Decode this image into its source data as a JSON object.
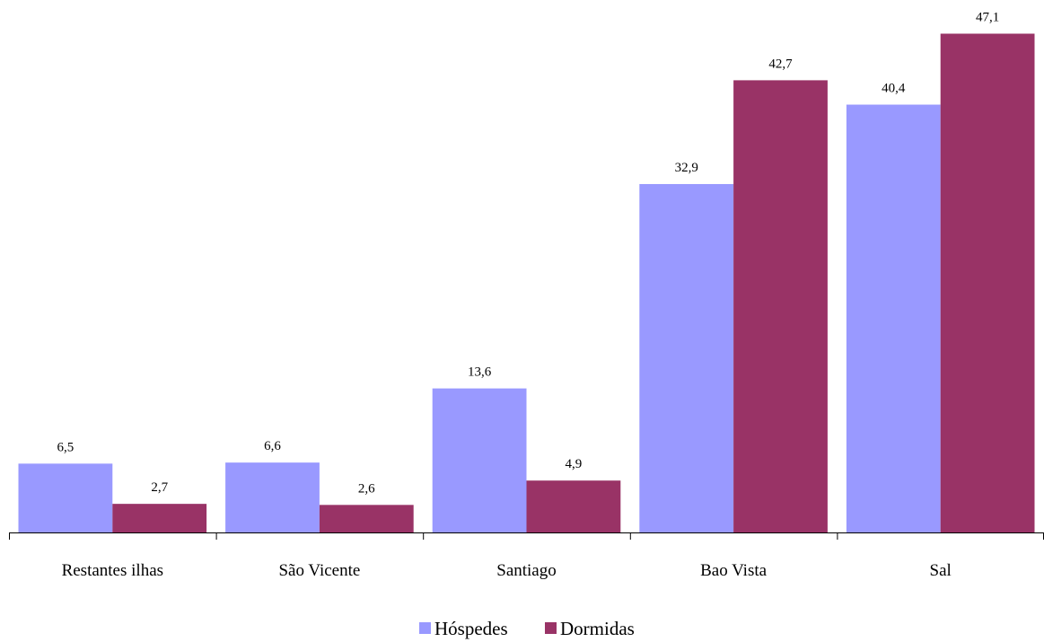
{
  "chart_data": {
    "type": "bar",
    "categories": [
      "Restantes ilhas",
      "São Vicente",
      "Santiago",
      "Bao Vista",
      "Sal"
    ],
    "series": [
      {
        "name": "Hóspedes",
        "values": [
          6.5,
          6.6,
          13.6,
          32.9,
          40.4
        ],
        "color": "#9999ff"
      },
      {
        "name": "Dormidas",
        "values": [
          2.7,
          2.6,
          4.9,
          42.7,
          47.1
        ],
        "color": "#993366"
      }
    ],
    "data_labels": [
      [
        "6,5",
        "6,6",
        "13,6",
        "32,9",
        "40,4"
      ],
      [
        "2,7",
        "2,6",
        "4,9",
        "42,7",
        "47,1"
      ]
    ],
    "ylim": [
      0,
      50
    ],
    "legend_position": "bottom-center",
    "grid": false
  }
}
